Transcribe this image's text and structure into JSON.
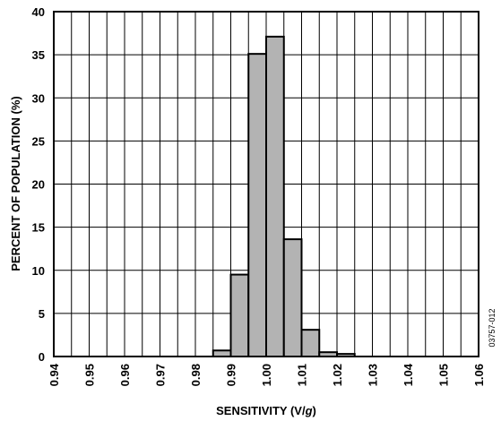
{
  "chart_data": {
    "type": "bar",
    "x_ticks": [
      "0.94",
      "0.95",
      "0.96",
      "0.97",
      "0.98",
      "0.99",
      "1.00",
      "1.01",
      "1.02",
      "1.03",
      "1.04",
      "1.05",
      "1.06"
    ],
    "y_ticks": [
      "0",
      "5",
      "10",
      "15",
      "20",
      "25",
      "30",
      "35",
      "40"
    ],
    "bins": [
      {
        "from": 0.985,
        "to": 0.99,
        "value": 0.7
      },
      {
        "from": 0.99,
        "to": 0.995,
        "value": 9.5
      },
      {
        "from": 0.995,
        "to": 1.0,
        "value": 35.1
      },
      {
        "from": 1.0,
        "to": 1.005,
        "value": 37.1
      },
      {
        "from": 1.005,
        "to": 1.01,
        "value": 13.6
      },
      {
        "from": 1.01,
        "to": 1.015,
        "value": 3.1
      },
      {
        "from": 1.015,
        "to": 1.02,
        "value": 0.5
      },
      {
        "from": 1.02,
        "to": 1.025,
        "value": 0.3
      }
    ],
    "xlim": [
      0.94,
      1.06
    ],
    "ylim": [
      0,
      40
    ],
    "x_grid_step": 0.005,
    "y_grid_step": 5,
    "grid": true,
    "xlabel_main": "SENSITIVITY (V/",
    "xlabel_unit": "g",
    "xlabel_close": ")",
    "ylabel": "PERCENT OF POPULATION (%)",
    "bar_color": "#b3b3b3",
    "figure_code": "03757-012"
  }
}
